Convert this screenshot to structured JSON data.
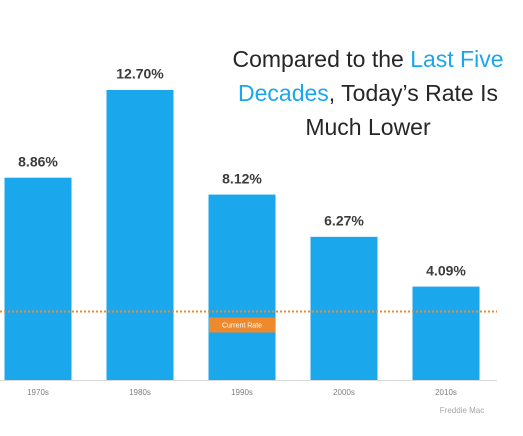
{
  "chart_data": {
    "type": "bar",
    "title_lines": [
      [
        {
          "text": "Compared to the ",
          "highlight": false
        },
        {
          "text": "Last Five",
          "highlight": true
        }
      ],
      [
        {
          "text": "Decades",
          "highlight": true
        },
        {
          "text": ", Today’s Rate Is",
          "highlight": false
        }
      ],
      [
        {
          "text": "Much Lower",
          "highlight": false
        }
      ]
    ],
    "highlight_color": "#1aa7ec",
    "categories": [
      "1970s",
      "1980s",
      "1990s",
      "2000s",
      "2010s"
    ],
    "values": [
      8.86,
      12.7,
      8.12,
      6.27,
      4.09
    ],
    "value_labels": [
      "8.86%",
      "12.70%",
      "8.12%",
      "6.27%",
      "4.09%"
    ],
    "color": "#1aa7ec",
    "ylim": [
      0,
      12.7
    ],
    "reference_line": {
      "label": "Current Rate",
      "value": 3.0,
      "color": "#ee8a2e"
    },
    "source": "Freddie Mac"
  }
}
